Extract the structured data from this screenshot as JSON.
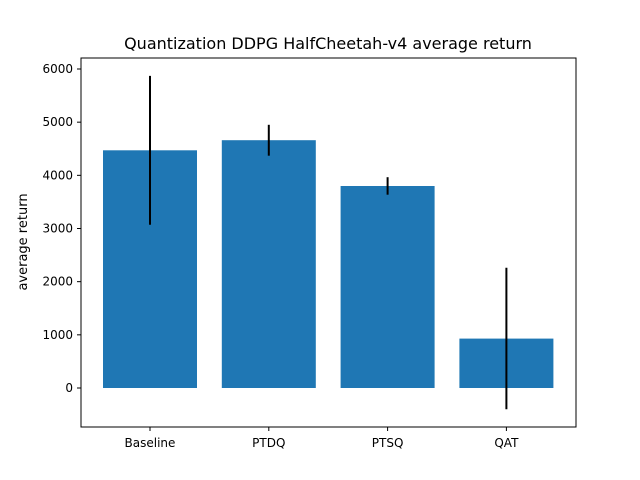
{
  "chart_data": {
    "type": "bar",
    "title": "Quantization DDPG HalfCheetah-v4 average return",
    "xlabel": "",
    "ylabel": "average return",
    "categories": [
      "Baseline",
      "PTDQ",
      "PTSQ",
      "QAT"
    ],
    "values": [
      4470,
      4660,
      3800,
      930
    ],
    "error": [
      1400,
      290,
      165,
      1330
    ],
    "ylim": [
      -720,
      6000
    ],
    "yticks": [
      0,
      1000,
      2000,
      3000,
      4000,
      5000,
      6000
    ],
    "ytick_labels": [
      "0",
      "1000",
      "2000",
      "3000",
      "4000",
      "5000",
      "6000"
    ],
    "grid": false,
    "legend": "none",
    "bar_color": "#1f77b4",
    "error_color": "#000000"
  }
}
